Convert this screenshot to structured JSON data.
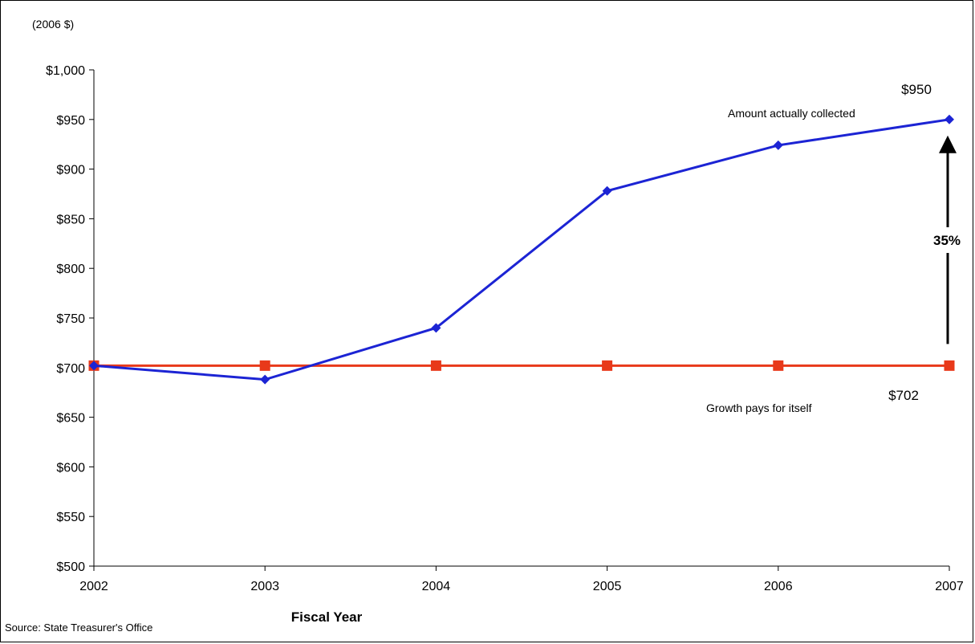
{
  "chart_data": {
    "type": "line",
    "title": "",
    "unit_note": "(2006 $)",
    "xlabel": "Fiscal Year",
    "ylabel": "",
    "x": [
      "2002",
      "2003",
      "2004",
      "2005",
      "2006",
      "2007"
    ],
    "ylim": [
      500,
      1000
    ],
    "yticks": [
      500,
      550,
      600,
      650,
      700,
      750,
      800,
      850,
      900,
      950,
      1000
    ],
    "ytick_labels": [
      "$500",
      "$550",
      "$600",
      "$650",
      "$700",
      "$750",
      "$800",
      "$850",
      "$900",
      "$950",
      "$1,000"
    ],
    "grid": false,
    "series": [
      {
        "name": "Amount actually collected",
        "color": "#1c24d4",
        "marker": "diamond",
        "values": [
          702,
          688,
          740,
          878,
          924,
          950
        ]
      },
      {
        "name": "Growth pays for itself",
        "color": "#e8391a",
        "marker": "square",
        "values": [
          702,
          702,
          702,
          702,
          702,
          702
        ]
      }
    ],
    "annotations": {
      "end_value_top": "$950",
      "end_value_bottom": "$702",
      "change_label": "35%"
    },
    "source": "Source: State Treasurer's Office"
  }
}
